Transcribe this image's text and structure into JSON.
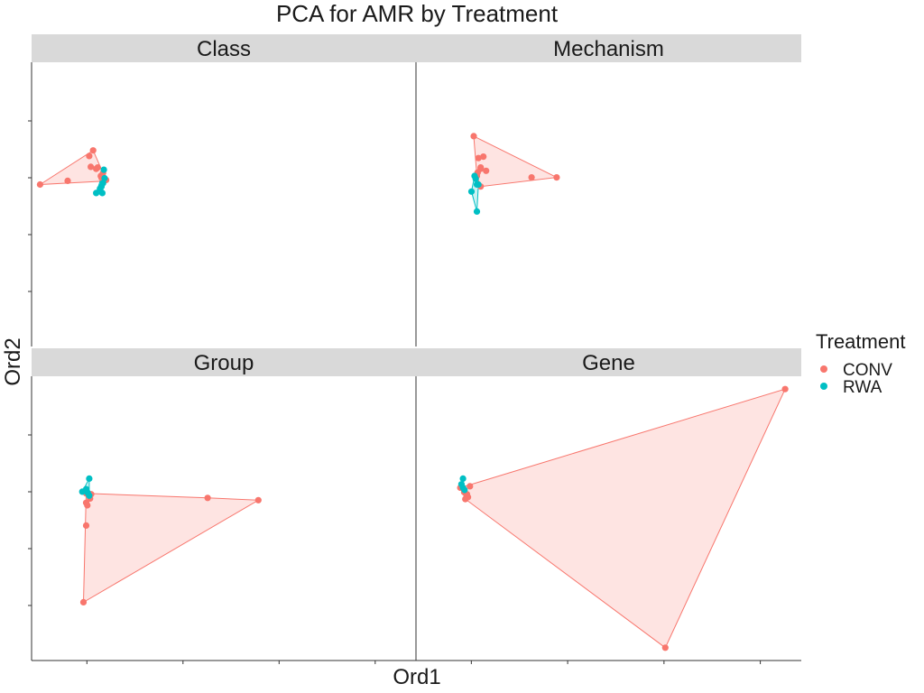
{
  "chart_data": {
    "type": "scatter",
    "title": "PCA for AMR by Treatment",
    "xlabel": "Ord1",
    "ylabel": "Ord2",
    "hulls": true,
    "axis_tick_labels": false,
    "legend": {
      "title": "Treatment",
      "placement": "right",
      "entries": [
        {
          "name": "CONV",
          "color": "#F8766D"
        },
        {
          "name": "RWA",
          "color": "#00BFC4"
        }
      ]
    },
    "panels": [
      {
        "name": "Class",
        "xlim": [
          0,
          1
        ],
        "ylim": [
          0,
          1
        ],
        "series": [
          {
            "name": "CONV",
            "color": "#F8766D",
            "x": [
              0.022,
              0.094,
              0.15,
              0.16,
              0.172,
              0.154,
              0.168,
              0.18,
              0.186,
              0.188,
              0.194,
              0.182
            ],
            "y": [
              0.57,
              0.583,
              0.67,
              0.69,
              0.63,
              0.632,
              0.625,
              0.6,
              0.61,
              0.582,
              0.586,
              0.594
            ]
          },
          {
            "name": "RWA",
            "color": "#00BFC4",
            "x": [
              0.168,
              0.178,
              0.182,
              0.186,
              0.188,
              0.19,
              0.184
            ],
            "y": [
              0.54,
              0.555,
              0.563,
              0.575,
              0.622,
              0.592,
              0.54
            ]
          }
        ]
      },
      {
        "name": "Mechanism",
        "xlim": [
          0,
          1
        ],
        "ylim": [
          0,
          1
        ],
        "series": [
          {
            "name": "CONV",
            "color": "#F8766D",
            "x": [
              0.15,
              0.162,
              0.168,
              0.175,
              0.182,
              0.168,
              0.16,
              0.158,
              0.168,
              0.3,
              0.365
            ],
            "y": [
              0.74,
              0.663,
              0.63,
              0.668,
              0.618,
              0.625,
              0.612,
              0.6,
              0.563,
              0.595,
              0.595
            ]
          },
          {
            "name": "RWA",
            "color": "#00BFC4",
            "x": [
              0.144,
              0.152,
              0.155,
              0.158,
              0.162,
              0.158
            ],
            "y": [
              0.545,
              0.6,
              0.59,
              0.57,
              0.57,
              0.475
            ]
          }
        ]
      },
      {
        "name": "Group",
        "xlim": [
          0,
          1
        ],
        "ylim": [
          0,
          1
        ],
        "series": [
          {
            "name": "CONV",
            "color": "#F8766D",
            "x": [
              0.142,
              0.142,
              0.145,
              0.152,
              0.155,
              0.458,
              0.59,
              0.135
            ],
            "y": [
              0.588,
              0.555,
              0.546,
              0.57,
              0.585,
              0.572,
              0.564,
              0.205
            ]
          },
          {
            "name": "RWA",
            "color": "#00BFC4",
            "x": [
              0.132,
              0.142,
              0.146,
              0.15,
              0.15
            ],
            "y": [
              0.594,
              0.603,
              0.59,
              0.58,
              0.64
            ]
          },
          {
            "name": "CONV",
            "color": "#F8766D",
            "x": [
              0.142
            ],
            "y": [
              0.475
            ]
          }
        ]
      },
      {
        "name": "Gene",
        "xlim": [
          0,
          1
        ],
        "ylim": [
          0,
          1
        ],
        "series": [
          {
            "name": "CONV",
            "color": "#F8766D",
            "x": [
              0.115,
              0.125,
              0.132,
              0.135,
              0.128,
              0.14,
              0.958,
              0.647
            ],
            "y": [
              0.608,
              0.592,
              0.585,
              0.575,
              0.568,
              0.613,
              0.955,
              0.045
            ]
          },
          {
            "name": "RWA",
            "color": "#00BFC4",
            "x": [
              0.118,
              0.122,
              0.126,
              0.122
            ],
            "y": [
              0.62,
              0.608,
              0.6,
              0.64
            ]
          }
        ]
      }
    ]
  }
}
